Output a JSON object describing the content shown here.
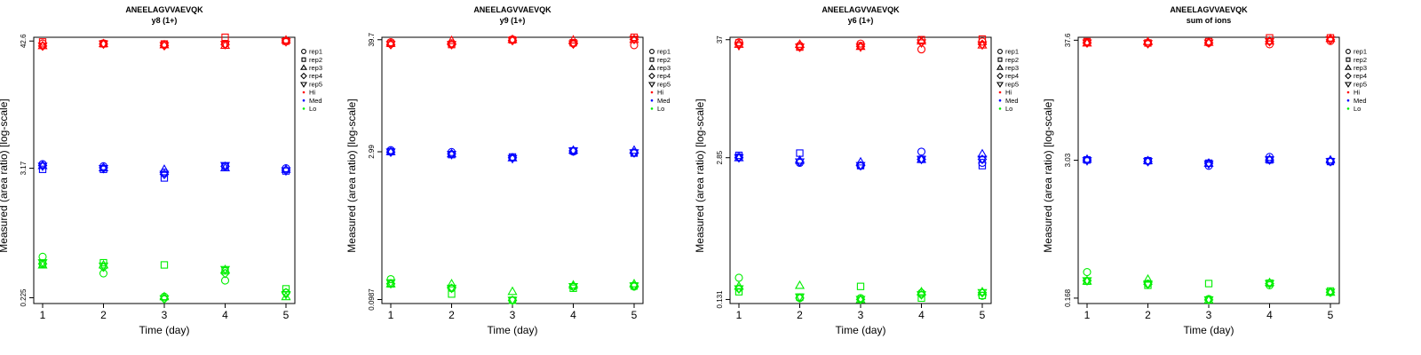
{
  "figure": {
    "colors": {
      "Hi": "#ff0000",
      "Med": "#0000ff",
      "Lo": "#00ee00"
    },
    "legend_position": "right",
    "legend": [
      {
        "label": "rep1",
        "marker": "circle"
      },
      {
        "label": "rep2",
        "marker": "square"
      },
      {
        "label": "rep3",
        "marker": "triangle-up"
      },
      {
        "label": "rep4",
        "marker": "diamond"
      },
      {
        "label": "rep5",
        "marker": "triangle-down"
      },
      {
        "label": "Hi",
        "marker": "dot",
        "color_key": "Hi"
      },
      {
        "label": "Med",
        "marker": "dot",
        "color_key": "Med"
      },
      {
        "label": "Lo",
        "marker": "dot",
        "color_key": "Lo"
      }
    ]
  },
  "chart_data": [
    {
      "type": "scatter",
      "title": "ANEELAGVVAEVQK",
      "subtitle": "y8 (1+)",
      "xlabel": "Time (day)",
      "ylabel": "Measured (area ratio) [log-scale]",
      "yscale": "log",
      "ylim": [
        0.2,
        46
      ],
      "yticks": [
        0.225,
        3.17,
        42.6
      ],
      "ytick_labels": [
        "0.225",
        "3.17",
        "42.6"
      ],
      "xticks": [
        1,
        2,
        3,
        4,
        5
      ],
      "x": [
        1,
        2,
        3,
        4,
        5
      ],
      "series": [
        {
          "level": "Hi",
          "rep": "rep1",
          "values": [
            40.5,
            40.7,
            39.8,
            40.0,
            42.3
          ]
        },
        {
          "level": "Hi",
          "rep": "rep2",
          "values": [
            41.8,
            40.3,
            40.1,
            46.0,
            42.5
          ]
        },
        {
          "level": "Hi",
          "rep": "rep3",
          "values": [
            38.8,
            40.4,
            39.5,
            39.0,
            43.5
          ]
        },
        {
          "level": "Hi",
          "rep": "rep4",
          "values": [
            38.5,
            40.1,
            38.8,
            39.7,
            42.8
          ]
        },
        {
          "level": "Hi",
          "rep": "rep5",
          "values": [
            38.5,
            40.1,
            38.8,
            39.7,
            42.0
          ]
        },
        {
          "level": "Med",
          "rep": "rep1",
          "values": [
            3.45,
            3.3,
            2.9,
            3.3,
            3.17
          ]
        },
        {
          "level": "Med",
          "rep": "rep2",
          "values": [
            3.1,
            3.1,
            2.6,
            3.3,
            3.0
          ]
        },
        {
          "level": "Med",
          "rep": "rep3",
          "values": [
            3.35,
            3.2,
            3.1,
            3.2,
            3.1
          ]
        },
        {
          "level": "Med",
          "rep": "rep4",
          "values": [
            3.35,
            3.2,
            2.8,
            3.3,
            3.05
          ]
        },
        {
          "level": "Med",
          "rep": "rep5",
          "values": [
            3.3,
            3.15,
            2.8,
            3.35,
            3.0
          ]
        },
        {
          "level": "Lo",
          "rep": "rep1",
          "values": [
            0.52,
            0.37,
            0.23,
            0.32,
            0.25
          ]
        },
        {
          "level": "Lo",
          "rep": "rep2",
          "values": [
            0.45,
            0.46,
            0.44,
            0.39,
            0.27
          ]
        },
        {
          "level": "Lo",
          "rep": "rep3",
          "values": [
            0.44,
            0.44,
            0.23,
            0.4,
            0.23
          ]
        },
        {
          "level": "Lo",
          "rep": "rep4",
          "values": [
            0.45,
            0.42,
            0.22,
            0.37,
            0.25
          ]
        },
        {
          "level": "Lo",
          "rep": "rep5",
          "values": [
            0.46,
            0.43,
            0.22,
            0.4,
            0.24
          ]
        }
      ]
    },
    {
      "type": "scatter",
      "title": "ANEELAGVVAEVQK",
      "subtitle": "y9 (1+)",
      "xlabel": "Time (day)",
      "ylabel": "Measured (area ratio) [log-scale]",
      "yscale": "log",
      "ylim": [
        0.09,
        42
      ],
      "yticks": [
        0.0987,
        2.99,
        39.7
      ],
      "ytick_labels": [
        "0.0987",
        "2.99",
        "39.7"
      ],
      "xticks": [
        1,
        2,
        3,
        4,
        5
      ],
      "x": [
        1,
        2,
        3,
        4,
        5
      ],
      "series": [
        {
          "level": "Hi",
          "rep": "rep1",
          "values": [
            37.5,
            36.5,
            40.0,
            36.5,
            35.0
          ]
        },
        {
          "level": "Hi",
          "rep": "rep2",
          "values": [
            36.5,
            35.5,
            39.5,
            37.0,
            42.0
          ]
        },
        {
          "level": "Hi",
          "rep": "rep3",
          "values": [
            36.5,
            39.0,
            40.0,
            39.5,
            40.0
          ]
        },
        {
          "level": "Hi",
          "rep": "rep4",
          "values": [
            35.5,
            35.5,
            39.0,
            36.0,
            40.0
          ]
        },
        {
          "level": "Hi",
          "rep": "rep5",
          "values": [
            35.5,
            35.5,
            39.0,
            36.0,
            40.0
          ]
        },
        {
          "level": "Med",
          "rep": "rep1",
          "values": [
            3.1,
            2.97,
            2.6,
            3.0,
            2.92
          ]
        },
        {
          "level": "Med",
          "rep": "rep2",
          "values": [
            3.0,
            2.8,
            2.65,
            3.05,
            2.9
          ]
        },
        {
          "level": "Med",
          "rep": "rep3",
          "values": [
            3.0,
            2.85,
            2.6,
            3.1,
            3.1
          ]
        },
        {
          "level": "Med",
          "rep": "rep4",
          "values": [
            2.97,
            2.85,
            2.6,
            3.05,
            2.92
          ]
        },
        {
          "level": "Med",
          "rep": "rep5",
          "values": [
            2.97,
            2.8,
            2.55,
            3.05,
            2.92
          ]
        },
        {
          "level": "Lo",
          "rep": "rep1",
          "values": [
            0.158,
            0.128,
            0.097,
            0.133,
            0.133
          ]
        },
        {
          "level": "Lo",
          "rep": "rep2",
          "values": [
            0.142,
            0.112,
            0.097,
            0.128,
            0.135
          ]
        },
        {
          "level": "Lo",
          "rep": "rep3",
          "values": [
            0.142,
            0.142,
            0.119,
            0.138,
            0.142
          ]
        },
        {
          "level": "Lo",
          "rep": "rep4",
          "values": [
            0.142,
            0.128,
            0.097,
            0.133,
            0.135
          ]
        },
        {
          "level": "Lo",
          "rep": "rep5",
          "values": [
            0.145,
            0.128,
            0.097,
            0.133,
            0.135
          ]
        }
      ]
    },
    {
      "type": "scatter",
      "title": "ANEELAGVVAEVQK",
      "subtitle": "y6 (1+)",
      "xlabel": "Time (day)",
      "ylabel": "Measured (area ratio) [log-scale]",
      "yscale": "log",
      "ylim": [
        0.12,
        39
      ],
      "yticks": [
        0.131,
        2.85,
        37
      ],
      "ytick_labels": [
        "0.131",
        "2.85",
        "37"
      ],
      "xticks": [
        1,
        2,
        3,
        4,
        5
      ],
      "x": [
        1,
        2,
        3,
        4,
        5
      ],
      "series": [
        {
          "level": "Hi",
          "rep": "rep1",
          "values": [
            35.0,
            32.5,
            34.0,
            30.0,
            35.5
          ]
        },
        {
          "level": "Hi",
          "rep": "rep2",
          "values": [
            34.5,
            31.5,
            32.5,
            37.0,
            37.5
          ]
        },
        {
          "level": "Hi",
          "rep": "rep3",
          "values": [
            33.5,
            33.5,
            32.0,
            36.0,
            33.0
          ]
        },
        {
          "level": "Hi",
          "rep": "rep4",
          "values": [
            33.5,
            31.5,
            32.0,
            35.0,
            33.5
          ]
        },
        {
          "level": "Hi",
          "rep": "rep5",
          "values": [
            32.5,
            31.5,
            31.5,
            34.5,
            33.0
          ]
        },
        {
          "level": "Med",
          "rep": "rep1",
          "values": [
            2.9,
            2.55,
            2.4,
            3.25,
            2.55
          ]
        },
        {
          "level": "Med",
          "rep": "rep2",
          "values": [
            3.0,
            3.15,
            2.4,
            2.75,
            2.4
          ]
        },
        {
          "level": "Med",
          "rep": "rep3",
          "values": [
            2.85,
            2.7,
            2.6,
            2.75,
            3.1
          ]
        },
        {
          "level": "Med",
          "rep": "rep4",
          "values": [
            2.85,
            2.6,
            2.4,
            2.75,
            2.75
          ]
        },
        {
          "level": "Med",
          "rep": "rep5",
          "values": [
            2.85,
            2.6,
            2.4,
            2.75,
            2.75
          ]
        },
        {
          "level": "Lo",
          "rep": "rep1",
          "values": [
            0.21,
            0.135,
            0.135,
            0.151,
            0.142
          ]
        },
        {
          "level": "Lo",
          "rep": "rep2",
          "values": [
            0.155,
            0.138,
            0.174,
            0.135,
            0.143
          ]
        },
        {
          "level": "Lo",
          "rep": "rep3",
          "values": [
            0.175,
            0.178,
            0.131,
            0.155,
            0.155
          ]
        },
        {
          "level": "Lo",
          "rep": "rep4",
          "values": [
            0.165,
            0.135,
            0.131,
            0.145,
            0.152
          ]
        },
        {
          "level": "Lo",
          "rep": "rep5",
          "values": [
            0.165,
            0.138,
            0.131,
            0.145,
            0.152
          ]
        }
      ]
    },
    {
      "type": "scatter",
      "title": "ANEELAGVVAEVQK",
      "subtitle": "sum of ions",
      "xlabel": "Time (day)",
      "ylabel": "Measured (area ratio) [log-scale]",
      "yscale": "log",
      "ylim": [
        0.15,
        40
      ],
      "yticks": [
        0.168,
        3.03,
        37.6
      ],
      "ytick_labels": [
        "0.168",
        "3.03",
        "37.6"
      ],
      "xticks": [
        1,
        2,
        3,
        4,
        5
      ],
      "x": [
        1,
        2,
        3,
        4,
        5
      ],
      "series": [
        {
          "level": "Hi",
          "rep": "rep1",
          "values": [
            36.0,
            35.5,
            35.5,
            34.5,
            37.0
          ]
        },
        {
          "level": "Hi",
          "rep": "rep2",
          "values": [
            36.5,
            35.5,
            36.5,
            39.5,
            39.5
          ]
        },
        {
          "level": "Hi",
          "rep": "rep3",
          "values": [
            35.5,
            36.5,
            36.0,
            37.0,
            39.0
          ]
        },
        {
          "level": "Hi",
          "rep": "rep4",
          "values": [
            35.5,
            35.0,
            35.5,
            36.5,
            38.0
          ]
        },
        {
          "level": "Hi",
          "rep": "rep5",
          "values": [
            35.5,
            35.0,
            35.5,
            36.5,
            38.0
          ]
        },
        {
          "level": "Med",
          "rep": "rep1",
          "values": [
            3.05,
            3.0,
            2.7,
            3.25,
            2.95
          ]
        },
        {
          "level": "Med",
          "rep": "rep2",
          "values": [
            3.05,
            3.0,
            2.85,
            3.05,
            2.95
          ]
        },
        {
          "level": "Med",
          "rep": "rep3",
          "values": [
            3.1,
            3.0,
            2.85,
            3.1,
            3.05
          ]
        },
        {
          "level": "Med",
          "rep": "rep4",
          "values": [
            3.05,
            2.95,
            2.85,
            3.05,
            2.95
          ]
        },
        {
          "level": "Med",
          "rep": "rep5",
          "values": [
            3.0,
            2.95,
            2.8,
            3.05,
            2.95
          ]
        },
        {
          "level": "Lo",
          "rep": "rep1",
          "values": [
            0.29,
            0.228,
            0.165,
            0.22,
            0.19
          ]
        },
        {
          "level": "Lo",
          "rep": "rep2",
          "values": [
            0.24,
            0.22,
            0.228,
            0.23,
            0.195
          ]
        },
        {
          "level": "Lo",
          "rep": "rep3",
          "values": [
            0.24,
            0.25,
            0.162,
            0.233,
            0.19
          ]
        },
        {
          "level": "Lo",
          "rep": "rep4",
          "values": [
            0.242,
            0.225,
            0.162,
            0.228,
            0.19
          ]
        },
        {
          "level": "Lo",
          "rep": "rep5",
          "values": [
            0.242,
            0.225,
            0.162,
            0.228,
            0.19
          ]
        }
      ]
    }
  ]
}
